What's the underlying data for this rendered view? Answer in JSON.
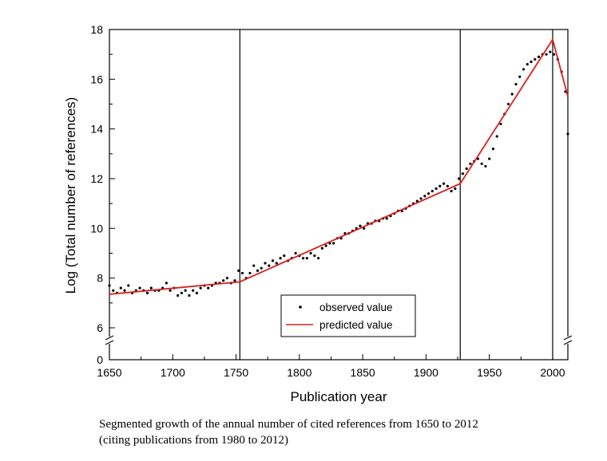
{
  "chart_data": {
    "type": "line",
    "title": "",
    "xlabel": "Publication year",
    "ylabel": "Log (Total number of references)",
    "xlim": [
      1650,
      2012
    ],
    "ylim": [
      0,
      18
    ],
    "y_axis_break": [
      0,
      6
    ],
    "x_ticks": [
      "1650",
      "1700",
      "1750",
      "1800",
      "1850",
      "1900",
      "1950",
      "2000"
    ],
    "y_ticks": [
      "0",
      "6",
      "8",
      "10",
      "12",
      "14",
      "16",
      "18"
    ],
    "breakpoints": [
      1753,
      1927,
      2000
    ],
    "legend_position": "lower-center",
    "series": [
      {
        "name": "predicted value",
        "style": "line",
        "color": "#d92020",
        "x": [
          1650,
          1753,
          1927,
          2000,
          2012
        ],
        "y": [
          7.35,
          7.85,
          11.8,
          17.6,
          15.3
        ]
      },
      {
        "name": "observed value",
        "style": "scatter",
        "color": "#000000",
        "x": [
          1650,
          1653,
          1656,
          1659,
          1662,
          1665,
          1668,
          1671,
          1674,
          1677,
          1680,
          1683,
          1686,
          1689,
          1692,
          1695,
          1698,
          1701,
          1704,
          1707,
          1710,
          1713,
          1716,
          1719,
          1722,
          1725,
          1728,
          1731,
          1734,
          1737,
          1740,
          1743,
          1746,
          1749,
          1752,
          1755,
          1758,
          1761,
          1764,
          1767,
          1770,
          1773,
          1776,
          1779,
          1782,
          1785,
          1788,
          1791,
          1794,
          1797,
          1800,
          1803,
          1806,
          1809,
          1812,
          1815,
          1818,
          1821,
          1824,
          1827,
          1830,
          1833,
          1836,
          1839,
          1842,
          1845,
          1848,
          1851,
          1854,
          1857,
          1860,
          1863,
          1866,
          1869,
          1872,
          1875,
          1878,
          1881,
          1884,
          1887,
          1890,
          1893,
          1896,
          1899,
          1902,
          1905,
          1908,
          1911,
          1914,
          1917,
          1920,
          1923,
          1926,
          1929,
          1932,
          1935,
          1938,
          1941,
          1944,
          1947,
          1950,
          1953,
          1956,
          1959,
          1962,
          1965,
          1968,
          1971,
          1974,
          1977,
          1980,
          1983,
          1986,
          1989,
          1992,
          1995,
          1998,
          2001,
          2004,
          2007,
          2010,
          2012
        ],
        "y": [
          7.7,
          7.5,
          7.4,
          7.6,
          7.5,
          7.7,
          7.4,
          7.5,
          7.6,
          7.5,
          7.4,
          7.6,
          7.5,
          7.5,
          7.6,
          7.8,
          7.5,
          7.6,
          7.3,
          7.4,
          7.5,
          7.3,
          7.5,
          7.4,
          7.6,
          7.7,
          7.6,
          7.7,
          7.8,
          7.8,
          7.9,
          8.0,
          7.8,
          7.9,
          8.3,
          8.2,
          8.0,
          8.2,
          8.5,
          8.3,
          8.4,
          8.6,
          8.5,
          8.7,
          8.6,
          8.8,
          8.9,
          8.7,
          8.8,
          9.0,
          8.9,
          8.8,
          8.8,
          9.0,
          8.9,
          8.8,
          9.2,
          9.3,
          9.4,
          9.4,
          9.6,
          9.6,
          9.8,
          9.8,
          9.9,
          10.0,
          10.1,
          10.0,
          10.2,
          10.2,
          10.3,
          10.3,
          10.4,
          10.4,
          10.5,
          10.6,
          10.7,
          10.7,
          10.8,
          10.9,
          11.0,
          11.1,
          11.2,
          11.3,
          11.4,
          11.5,
          11.6,
          11.7,
          11.8,
          11.7,
          11.5,
          11.6,
          12.0,
          12.2,
          12.4,
          12.6,
          12.7,
          12.8,
          12.6,
          12.5,
          12.8,
          13.2,
          13.7,
          14.2,
          14.6,
          15.0,
          15.4,
          15.8,
          16.1,
          16.4,
          16.6,
          16.7,
          16.8,
          16.9,
          17.0,
          17.0,
          17.1,
          17.0,
          16.8,
          16.3,
          15.5,
          13.8
        ]
      }
    ]
  },
  "caption": {
    "line1": "Segmented growth of the annual number of cited references from 1650 to 2012",
    "line2": "(citing publications from 1980 to 2012)"
  }
}
